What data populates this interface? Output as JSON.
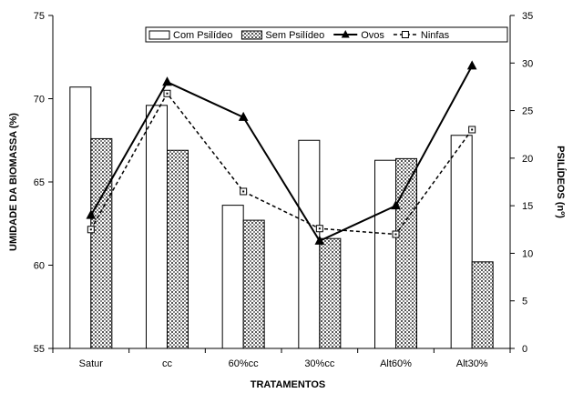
{
  "chart_data": {
    "type": "bar",
    "categories": [
      "Satur",
      "cc",
      "60%cc",
      "30%cc",
      "Alt60%",
      "Alt30%"
    ],
    "xlabel": "TRATAMENTOS",
    "ylabel": "UMIDADE DA BIOMASSA (%)",
    "y2label": "PSILÍDEOS (nº)",
    "ylim": [
      55,
      75
    ],
    "yticks": [
      "55",
      "60",
      "65",
      "70",
      "75"
    ],
    "y2lim": [
      0,
      35
    ],
    "y2ticks": [
      "0",
      "5",
      "10",
      "15",
      "20",
      "25",
      "30",
      "35"
    ],
    "grid": false,
    "legend_position": "top-right",
    "series": [
      {
        "name": "Com Psilídeo",
        "type": "bar",
        "axis": "left",
        "values": [
          70.7,
          69.6,
          63.6,
          67.5,
          66.3,
          67.8
        ]
      },
      {
        "name": "Sem Psilídeo",
        "type": "bar",
        "axis": "left",
        "values": [
          67.6,
          66.9,
          62.7,
          61.6,
          66.4,
          60.2
        ]
      },
      {
        "name": "Ovos",
        "type": "line",
        "axis": "right",
        "marker": "triangle",
        "values": [
          14,
          28,
          24.3,
          11.3,
          15,
          29.7
        ]
      },
      {
        "name": "Ninfas",
        "type": "line",
        "axis": "right",
        "marker": "square",
        "dashed": true,
        "values": [
          12.5,
          26.8,
          16.5,
          12.6,
          12,
          23
        ]
      }
    ]
  }
}
